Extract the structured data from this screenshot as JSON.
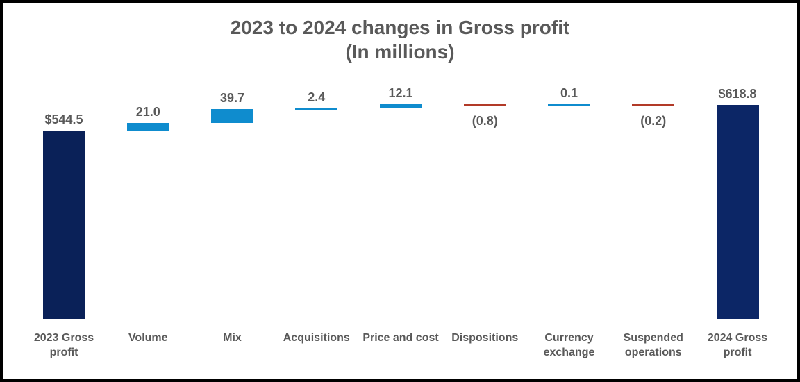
{
  "chart_data": {
    "type": "bar",
    "subtype": "waterfall",
    "title": "2023 to 2024 changes in Gross profit",
    "subtitle": "(In millions)",
    "unit": "millions USD",
    "grid": false,
    "legend": false,
    "baseline_value": 0,
    "ylim": [
      0,
      650
    ],
    "categories": [
      "2023 Gross profit",
      "Volume",
      "Mix",
      "Acquisitions",
      "Price and cost",
      "Dispositions",
      "Currency exchange",
      "Suspended operations",
      "2024 Gross profit"
    ],
    "items": [
      {
        "label": "2023 Gross profit",
        "value": 544.5,
        "display": "$544.5",
        "kind": "total",
        "label_position": "above",
        "color": "#0a2158"
      },
      {
        "label": "Volume",
        "value": 21.0,
        "display": "21.0",
        "kind": "increase",
        "label_position": "above",
        "color": "#0f8cce"
      },
      {
        "label": "Mix",
        "value": 39.7,
        "display": "39.7",
        "kind": "increase",
        "label_position": "above",
        "color": "#0f8cce"
      },
      {
        "label": "Acquisitions",
        "value": 2.4,
        "display": "2.4",
        "kind": "increase",
        "label_position": "above",
        "color": "#0f8cce"
      },
      {
        "label": "Price and cost",
        "value": 12.1,
        "display": "12.1",
        "kind": "increase",
        "label_position": "above",
        "color": "#0f8cce"
      },
      {
        "label": "Dispositions",
        "value": -0.8,
        "display": "(0.8)",
        "kind": "decrease",
        "label_position": "below",
        "color": "#b23a28"
      },
      {
        "label": "Currency exchange",
        "value": 0.1,
        "display": "0.1",
        "kind": "increase",
        "label_position": "above",
        "color": "#0f8cce"
      },
      {
        "label": "Suspended operations",
        "value": -0.2,
        "display": "(0.2)",
        "kind": "decrease",
        "label_position": "below",
        "color": "#b23a28"
      },
      {
        "label": "2024 Gross profit",
        "value": 618.8,
        "display": "$618.8",
        "kind": "total",
        "label_position": "above",
        "color": "#0c2666"
      }
    ],
    "colors": {
      "total": "#0a2158",
      "increase": "#0f8cce",
      "decrease": "#b23a28",
      "text": "#595959",
      "background": "#ffffff",
      "border": "#000000"
    }
  }
}
